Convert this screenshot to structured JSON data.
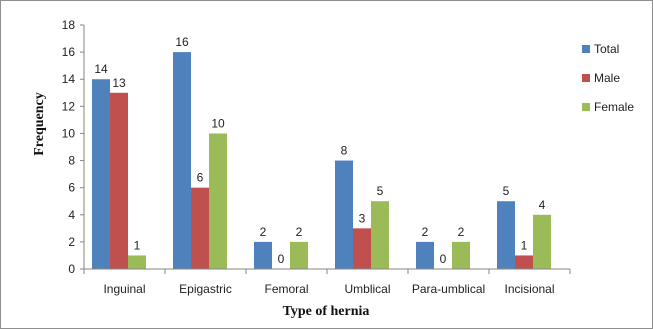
{
  "chart_data": {
    "type": "bar",
    "title": "",
    "xlabel": "Type of hernia",
    "ylabel": "Frequency",
    "ylim": [
      0,
      18
    ],
    "yticks": [
      0,
      2,
      4,
      6,
      8,
      10,
      12,
      14,
      16,
      18
    ],
    "grid": false,
    "legend_position": "right",
    "categories": [
      "Inguinal",
      "Epigastric",
      "Femoral",
      "Umblical",
      "Para-umblical",
      "Incisional"
    ],
    "series": [
      {
        "name": "Total",
        "color": "#4f81bd",
        "values": [
          14,
          16,
          2,
          8,
          2,
          5
        ]
      },
      {
        "name": "Male",
        "color": "#c0504d",
        "values": [
          13,
          6,
          0,
          3,
          0,
          1
        ]
      },
      {
        "name": "Female",
        "color": "#9bbb59",
        "values": [
          1,
          10,
          2,
          5,
          2,
          4
        ]
      }
    ]
  }
}
